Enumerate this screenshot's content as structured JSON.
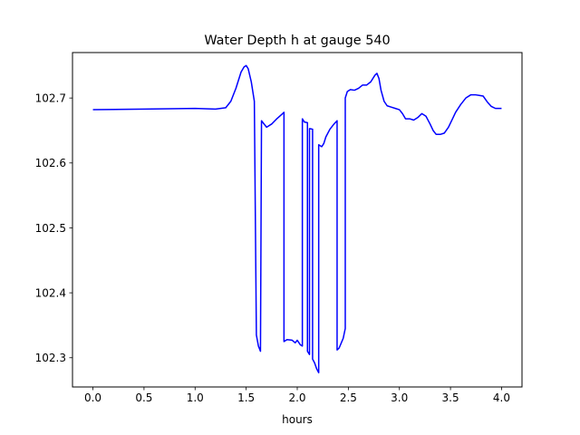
{
  "chart_data": {
    "type": "line",
    "title": "Water Depth h at gauge 540",
    "xlabel": "hours",
    "ylabel": "",
    "xlim": [
      -0.2,
      4.2
    ],
    "ylim": [
      102.255,
      102.77
    ],
    "xticks": [
      0.0,
      0.5,
      1.0,
      1.5,
      2.0,
      2.5,
      3.0,
      3.5,
      4.0
    ],
    "xtick_labels": [
      "0.0",
      "0.5",
      "1.0",
      "1.5",
      "2.0",
      "2.5",
      "3.0",
      "3.5",
      "4.0"
    ],
    "yticks": [
      102.3,
      102.4,
      102.5,
      102.6,
      102.7
    ],
    "ytick_labels": [
      "102.3",
      "102.4",
      "102.5",
      "102.6",
      "102.7"
    ],
    "grid": false,
    "series": [
      {
        "color": "#0000ff",
        "x": [
          0.0,
          0.5,
          1.0,
          1.2,
          1.3,
          1.35,
          1.4,
          1.45,
          1.48,
          1.5,
          1.52,
          1.55,
          1.58,
          1.6,
          1.6,
          1.62,
          1.64,
          1.65,
          1.65,
          1.7,
          1.75,
          1.8,
          1.85,
          1.87,
          1.87,
          1.9,
          1.95,
          1.98,
          2.0,
          2.03,
          2.05,
          2.05,
          2.07,
          2.1,
          2.1,
          2.12,
          2.12,
          2.15,
          2.15,
          2.17,
          2.19,
          2.21,
          2.21,
          2.24,
          2.26,
          2.28,
          2.32,
          2.36,
          2.39,
          2.39,
          2.41,
          2.45,
          2.47,
          2.47,
          2.49,
          2.52,
          2.56,
          2.6,
          2.64,
          2.68,
          2.72,
          2.76,
          2.78,
          2.8,
          2.82,
          2.85,
          2.88,
          2.92,
          2.96,
          3.0,
          3.03,
          3.06,
          3.1,
          3.14,
          3.18,
          3.22,
          3.26,
          3.3,
          3.33,
          3.36,
          3.4,
          3.44,
          3.48,
          3.52,
          3.55,
          3.6,
          3.65,
          3.7,
          3.74,
          3.78,
          3.82,
          3.86,
          3.9,
          3.94,
          3.98,
          4.0
        ],
        "values": [
          102.682,
          102.683,
          102.684,
          102.683,
          102.685,
          102.695,
          102.715,
          102.74,
          102.748,
          102.75,
          102.745,
          102.725,
          102.695,
          102.335,
          102.335,
          102.318,
          102.31,
          102.665,
          102.665,
          102.655,
          102.66,
          102.668,
          102.675,
          102.678,
          102.325,
          102.328,
          102.327,
          102.323,
          102.327,
          102.32,
          102.318,
          102.668,
          102.663,
          102.662,
          102.31,
          102.305,
          102.653,
          102.652,
          102.298,
          102.292,
          102.283,
          102.277,
          102.628,
          102.625,
          102.63,
          102.64,
          102.652,
          102.66,
          102.665,
          102.312,
          102.315,
          102.33,
          102.345,
          102.7,
          102.71,
          102.713,
          102.712,
          102.715,
          102.72,
          102.72,
          102.725,
          102.735,
          102.738,
          102.73,
          102.712,
          102.695,
          102.688,
          102.686,
          102.684,
          102.682,
          102.676,
          102.668,
          102.668,
          102.666,
          102.67,
          102.676,
          102.672,
          102.66,
          102.65,
          102.644,
          102.644,
          102.646,
          102.655,
          102.668,
          102.678,
          102.69,
          102.7,
          102.705,
          102.705,
          102.704,
          102.703,
          102.694,
          102.687,
          102.684,
          102.684,
          102.684
        ]
      }
    ]
  }
}
